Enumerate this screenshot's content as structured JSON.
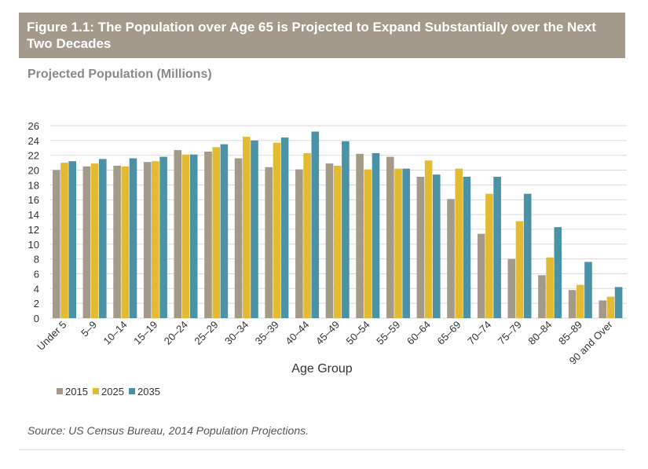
{
  "figure_title": "Figure 1.1: The Population over Age 65 is Projected to Expand Substantially over the Next Two Decades",
  "source": "Source: US Census Bureau, 2014 Population Projections.",
  "colors": {
    "2015": "#a39a88",
    "2025": "#e3bb32",
    "2035": "#4a92a6",
    "title_bg": "#a49a8b"
  },
  "chart_data": {
    "type": "bar",
    "title": "Projected Population (Millions)",
    "xlabel": "Age Group",
    "ylabel": "",
    "ylim": [
      0,
      26
    ],
    "yticks": [
      0,
      2,
      4,
      6,
      8,
      10,
      12,
      14,
      16,
      18,
      20,
      22,
      24,
      26
    ],
    "grid": true,
    "legend_position": "bottom-left",
    "categories": [
      "Under 5",
      "5–9",
      "10–14",
      "15–19",
      "20–24",
      "25–29",
      "30–34",
      "35–39",
      "40–44",
      "45–49",
      "50–54",
      "55–59",
      "60–64",
      "65–69",
      "70–74",
      "75–79",
      "80–84",
      "85–89",
      "90 and Over"
    ],
    "series": [
      {
        "name": "2015",
        "values": [
          20.0,
          20.5,
          20.6,
          21.1,
          22.7,
          22.5,
          21.6,
          20.4,
          20.1,
          20.9,
          22.2,
          21.8,
          19.1,
          16.1,
          11.4,
          8.0,
          5.8,
          3.8,
          2.4
        ]
      },
      {
        "name": "2025",
        "values": [
          21.0,
          20.9,
          20.5,
          21.2,
          22.1,
          23.1,
          24.5,
          23.7,
          22.3,
          20.6,
          20.1,
          20.2,
          21.3,
          20.2,
          16.8,
          13.1,
          8.2,
          4.5,
          2.9
        ]
      },
      {
        "name": "2035",
        "values": [
          21.2,
          21.5,
          21.6,
          21.8,
          22.1,
          23.5,
          24.0,
          24.4,
          25.2,
          23.9,
          22.3,
          20.2,
          19.4,
          19.1,
          19.1,
          16.8,
          12.3,
          7.6,
          4.2
        ]
      }
    ]
  }
}
